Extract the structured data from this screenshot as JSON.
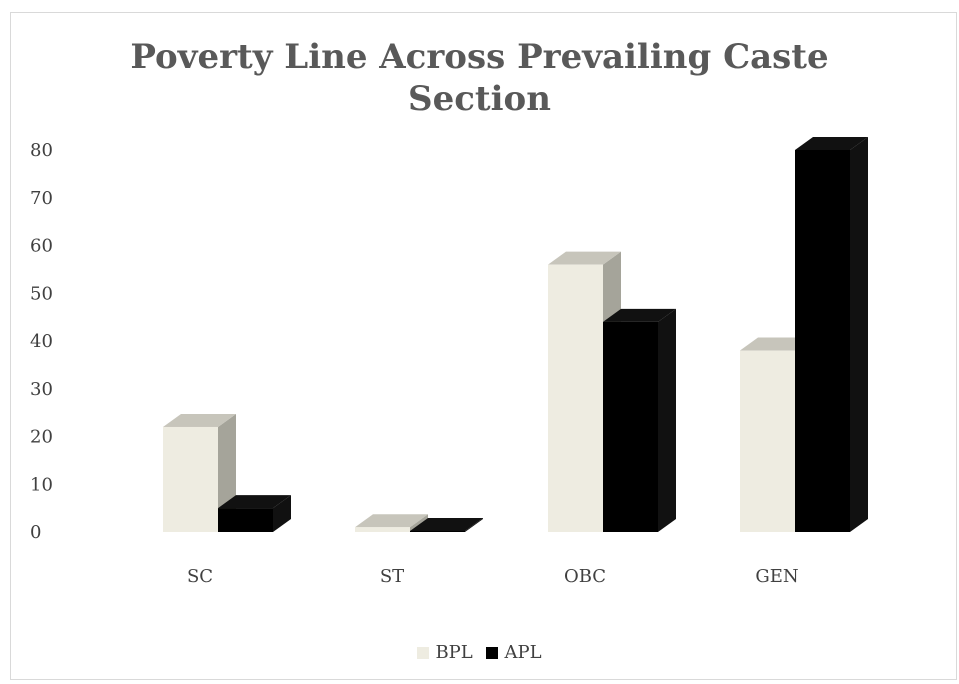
{
  "chart_data": {
    "type": "bar",
    "title_lines": [
      "Poverty Line Across Prevailing Caste",
      "Section"
    ],
    "categories": [
      "SC",
      "ST",
      "OBC",
      "GEN"
    ],
    "series": [
      {
        "name": "BPL",
        "values": [
          22,
          1,
          56,
          38
        ],
        "color": "#eeece1"
      },
      {
        "name": "APL",
        "values": [
          5,
          0,
          44,
          80
        ],
        "color": "#000000"
      }
    ],
    "ylim": [
      0,
      80
    ],
    "yticks": [
      0,
      10,
      20,
      30,
      40,
      50,
      60,
      70,
      80
    ],
    "legend_position": "bottom",
    "style": "3d-column",
    "grid": false
  }
}
